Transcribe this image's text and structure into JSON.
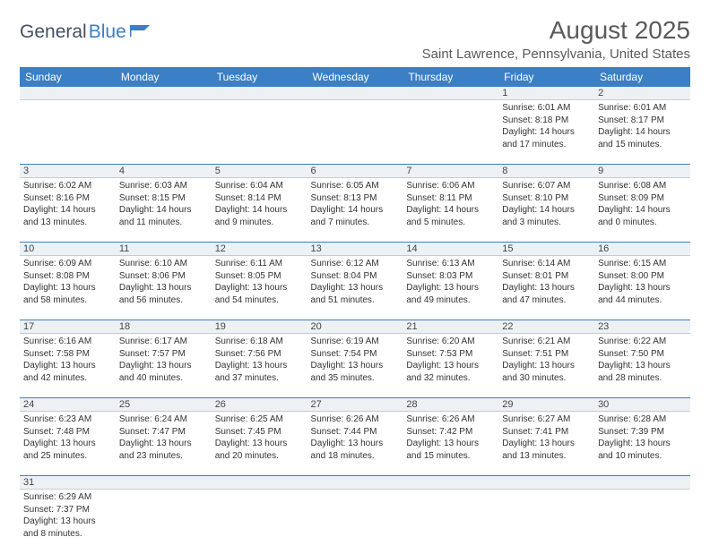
{
  "logo": {
    "general": "General",
    "blue": "Blue"
  },
  "header": {
    "title": "August 2025",
    "location": "Saint Lawrence, Pennsylvania, United States"
  },
  "colors": {
    "header_bg": "#3b7fc4",
    "header_text": "#ffffff",
    "daynum_bg": "#eef1f4",
    "border": "#3b7fc4",
    "logo_text": "#425063",
    "logo_icon": "#3b7fc4"
  },
  "days_of_week": [
    "Sunday",
    "Monday",
    "Tuesday",
    "Wednesday",
    "Thursday",
    "Friday",
    "Saturday"
  ],
  "weeks": [
    {
      "nums": [
        "",
        "",
        "",
        "",
        "",
        "1",
        "2"
      ],
      "cells": [
        null,
        null,
        null,
        null,
        null,
        {
          "sunrise": "6:01 AM",
          "sunset": "8:18 PM",
          "d1": "Daylight: 14 hours",
          "d2": "and 17 minutes."
        },
        {
          "sunrise": "6:01 AM",
          "sunset": "8:17 PM",
          "d1": "Daylight: 14 hours",
          "d2": "and 15 minutes."
        }
      ]
    },
    {
      "nums": [
        "3",
        "4",
        "5",
        "6",
        "7",
        "8",
        "9"
      ],
      "cells": [
        {
          "sunrise": "6:02 AM",
          "sunset": "8:16 PM",
          "d1": "Daylight: 14 hours",
          "d2": "and 13 minutes."
        },
        {
          "sunrise": "6:03 AM",
          "sunset": "8:15 PM",
          "d1": "Daylight: 14 hours",
          "d2": "and 11 minutes."
        },
        {
          "sunrise": "6:04 AM",
          "sunset": "8:14 PM",
          "d1": "Daylight: 14 hours",
          "d2": "and 9 minutes."
        },
        {
          "sunrise": "6:05 AM",
          "sunset": "8:13 PM",
          "d1": "Daylight: 14 hours",
          "d2": "and 7 minutes."
        },
        {
          "sunrise": "6:06 AM",
          "sunset": "8:11 PM",
          "d1": "Daylight: 14 hours",
          "d2": "and 5 minutes."
        },
        {
          "sunrise": "6:07 AM",
          "sunset": "8:10 PM",
          "d1": "Daylight: 14 hours",
          "d2": "and 3 minutes."
        },
        {
          "sunrise": "6:08 AM",
          "sunset": "8:09 PM",
          "d1": "Daylight: 14 hours",
          "d2": "and 0 minutes."
        }
      ]
    },
    {
      "nums": [
        "10",
        "11",
        "12",
        "13",
        "14",
        "15",
        "16"
      ],
      "cells": [
        {
          "sunrise": "6:09 AM",
          "sunset": "8:08 PM",
          "d1": "Daylight: 13 hours",
          "d2": "and 58 minutes."
        },
        {
          "sunrise": "6:10 AM",
          "sunset": "8:06 PM",
          "d1": "Daylight: 13 hours",
          "d2": "and 56 minutes."
        },
        {
          "sunrise": "6:11 AM",
          "sunset": "8:05 PM",
          "d1": "Daylight: 13 hours",
          "d2": "and 54 minutes."
        },
        {
          "sunrise": "6:12 AM",
          "sunset": "8:04 PM",
          "d1": "Daylight: 13 hours",
          "d2": "and 51 minutes."
        },
        {
          "sunrise": "6:13 AM",
          "sunset": "8:03 PM",
          "d1": "Daylight: 13 hours",
          "d2": "and 49 minutes."
        },
        {
          "sunrise": "6:14 AM",
          "sunset": "8:01 PM",
          "d1": "Daylight: 13 hours",
          "d2": "and 47 minutes."
        },
        {
          "sunrise": "6:15 AM",
          "sunset": "8:00 PM",
          "d1": "Daylight: 13 hours",
          "d2": "and 44 minutes."
        }
      ]
    },
    {
      "nums": [
        "17",
        "18",
        "19",
        "20",
        "21",
        "22",
        "23"
      ],
      "cells": [
        {
          "sunrise": "6:16 AM",
          "sunset": "7:58 PM",
          "d1": "Daylight: 13 hours",
          "d2": "and 42 minutes."
        },
        {
          "sunrise": "6:17 AM",
          "sunset": "7:57 PM",
          "d1": "Daylight: 13 hours",
          "d2": "and 40 minutes."
        },
        {
          "sunrise": "6:18 AM",
          "sunset": "7:56 PM",
          "d1": "Daylight: 13 hours",
          "d2": "and 37 minutes."
        },
        {
          "sunrise": "6:19 AM",
          "sunset": "7:54 PM",
          "d1": "Daylight: 13 hours",
          "d2": "and 35 minutes."
        },
        {
          "sunrise": "6:20 AM",
          "sunset": "7:53 PM",
          "d1": "Daylight: 13 hours",
          "d2": "and 32 minutes."
        },
        {
          "sunrise": "6:21 AM",
          "sunset": "7:51 PM",
          "d1": "Daylight: 13 hours",
          "d2": "and 30 minutes."
        },
        {
          "sunrise": "6:22 AM",
          "sunset": "7:50 PM",
          "d1": "Daylight: 13 hours",
          "d2": "and 28 minutes."
        }
      ]
    },
    {
      "nums": [
        "24",
        "25",
        "26",
        "27",
        "28",
        "29",
        "30"
      ],
      "cells": [
        {
          "sunrise": "6:23 AM",
          "sunset": "7:48 PM",
          "d1": "Daylight: 13 hours",
          "d2": "and 25 minutes."
        },
        {
          "sunrise": "6:24 AM",
          "sunset": "7:47 PM",
          "d1": "Daylight: 13 hours",
          "d2": "and 23 minutes."
        },
        {
          "sunrise": "6:25 AM",
          "sunset": "7:45 PM",
          "d1": "Daylight: 13 hours",
          "d2": "and 20 minutes."
        },
        {
          "sunrise": "6:26 AM",
          "sunset": "7:44 PM",
          "d1": "Daylight: 13 hours",
          "d2": "and 18 minutes."
        },
        {
          "sunrise": "6:26 AM",
          "sunset": "7:42 PM",
          "d1": "Daylight: 13 hours",
          "d2": "and 15 minutes."
        },
        {
          "sunrise": "6:27 AM",
          "sunset": "7:41 PM",
          "d1": "Daylight: 13 hours",
          "d2": "and 13 minutes."
        },
        {
          "sunrise": "6:28 AM",
          "sunset": "7:39 PM",
          "d1": "Daylight: 13 hours",
          "d2": "and 10 minutes."
        }
      ]
    },
    {
      "nums": [
        "31",
        "",
        "",
        "",
        "",
        "",
        ""
      ],
      "cells": [
        {
          "sunrise": "6:29 AM",
          "sunset": "7:37 PM",
          "d1": "Daylight: 13 hours",
          "d2": "and 8 minutes."
        },
        null,
        null,
        null,
        null,
        null,
        null
      ]
    }
  ],
  "labels": {
    "sunrise_prefix": "Sunrise: ",
    "sunset_prefix": "Sunset: "
  }
}
